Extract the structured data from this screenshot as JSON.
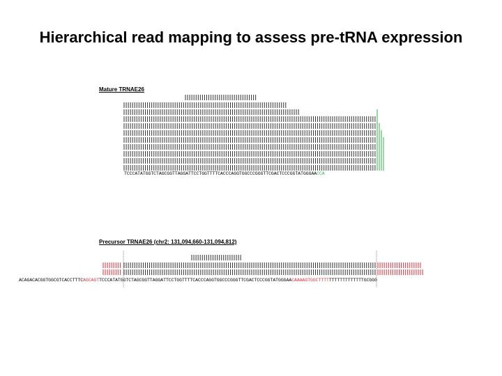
{
  "title": "Hierarchical read mapping to assess pre-tRNA expression",
  "mature": {
    "label": "Mature TRNAE26",
    "sequence": "TCCCATATGGTCTAGCGGTTAGGATTCCTGGTTTTCACCCAGGTGGCCCGGGTTCGACTCCCGGTATGGGAA",
    "cca_tail": "CCA"
  },
  "precursor": {
    "label": "Precursor TRNAE26 (chr2: 131,094,660-131,094,812)",
    "upstream": "ACAGACACGGTGGCGTCACCTTTC",
    "leader": "AGCAGT",
    "body": "TCCCATATGGTCTAGCGGTTAGGATTCCTGGTTTTCACCCAGGTGGCCCGGGTTCGACTCCCGGTATGGGAA",
    "trailer": "CAAAAGTGGCTTTT",
    "downstream": "TTTTTTTTTTTTTGCGGG"
  },
  "colors": {
    "read": "#333333",
    "cca_read": "#2fb24a",
    "flank_read": "#e0303a",
    "boundary": "#888888"
  }
}
